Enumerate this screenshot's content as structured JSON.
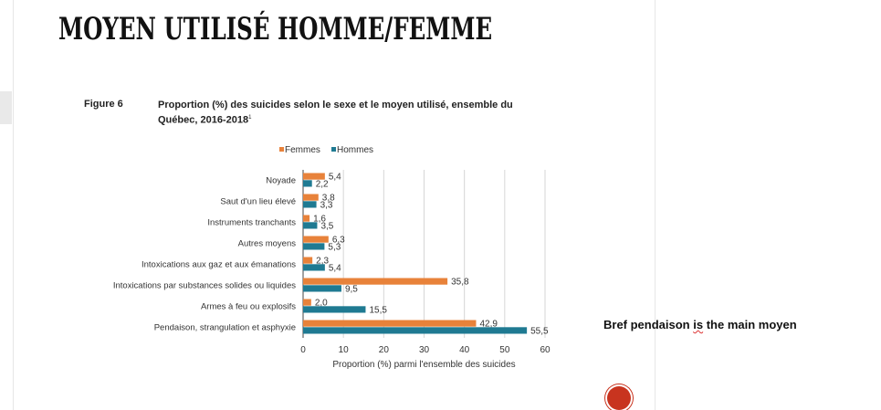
{
  "slide": {
    "title": "MOYEN UTILISÉ HOMME/FEMME",
    "note": {
      "before": "Bref pendaison ",
      "typo_word": "is",
      "after": " the main moyen"
    }
  },
  "figure": {
    "label": "Figure 6",
    "caption": "Proportion (%) des suicides selon le sexe et le moyen utilisé, ensemble du Québec, 2016-2018",
    "caption_note": "1"
  },
  "colors": {
    "femmes": "#e8823a",
    "hommes": "#1f7a92",
    "grid": "#d6d6d6",
    "axis": "#444444",
    "text": "#333333"
  },
  "chart_data": {
    "type": "bar",
    "orientation": "horizontal",
    "title": "Proportion (%) des suicides selon le sexe et le moyen utilisé, ensemble du Québec, 2016-2018",
    "xlabel": "Proportion (%) parmi l'ensemble des suicides",
    "ylabel": "",
    "xlim": [
      0,
      60
    ],
    "xticks": [
      0,
      10,
      20,
      30,
      40,
      50,
      60
    ],
    "grid": true,
    "legend": "top",
    "categories": [
      "Noyade",
      "Saut d'un lieu élevé",
      "Instruments tranchants",
      "Autres moyens",
      "Intoxications aux gaz et aux émanations",
      "Intoxications par substances solides ou liquides",
      "Armes à feu ou explosifs",
      "Pendaison, strangulation et asphyxie"
    ],
    "series": [
      {
        "name": "Femmes",
        "values": [
          5.4,
          3.8,
          1.6,
          6.3,
          2.3,
          35.8,
          2.0,
          42.9
        ],
        "labels": [
          "5,4",
          "3,8",
          "1,6",
          "6,3",
          "2,3",
          "35,8",
          "2,0",
          "42,9"
        ]
      },
      {
        "name": "Hommes",
        "values": [
          2.2,
          3.3,
          3.5,
          5.3,
          5.4,
          9.5,
          15.5,
          55.5
        ],
        "labels": [
          "2,2",
          "3,3",
          "3,5",
          "5,3",
          "5,4",
          "9,5",
          "15,5",
          "55,5"
        ]
      }
    ]
  }
}
